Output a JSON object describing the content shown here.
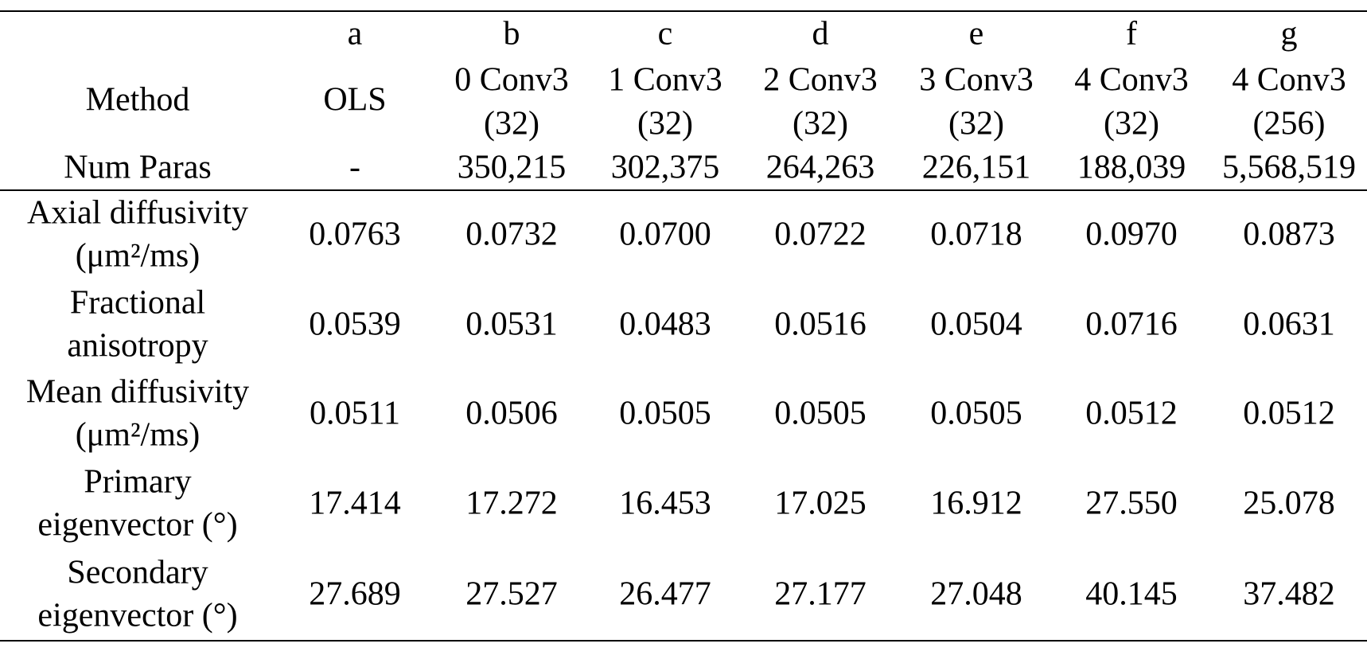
{
  "table": {
    "header": {
      "method_label": "Method",
      "params_label": "Num Paras",
      "columns": [
        {
          "letter": "a",
          "name": [
            "OLS"
          ],
          "params": "-"
        },
        {
          "letter": "b",
          "name": [
            "0 Conv3",
            "(32)"
          ],
          "params": "350,215"
        },
        {
          "letter": "c",
          "name": [
            "1 Conv3",
            "(32)"
          ],
          "params": "302,375"
        },
        {
          "letter": "d",
          "name": [
            "2 Conv3",
            "(32)"
          ],
          "params": "264,263"
        },
        {
          "letter": "e",
          "name": [
            "3 Conv3",
            "(32)"
          ],
          "params": "226,151"
        },
        {
          "letter": "f",
          "name": [
            "4 Conv3",
            "(32)"
          ],
          "params": "188,039"
        },
        {
          "letter": "g",
          "name": [
            "4 Conv3",
            "(256)"
          ],
          "params": "5,568,519"
        }
      ]
    },
    "rows": [
      {
        "label": [
          "Axial diffusivity",
          "(μm²/ms)"
        ],
        "values": [
          "0.0763",
          "0.0732",
          "0.0700",
          "0.0722",
          "0.0718",
          "0.0970",
          "0.0873"
        ],
        "colors": [
          "#000000",
          "#4472c4",
          "#ff0000",
          "#4472c4",
          "#4472c4",
          "#000000",
          "#000000"
        ]
      },
      {
        "label": [
          "Fractional",
          "anisotropy"
        ],
        "values": [
          "0.0539",
          "0.0531",
          "0.0483",
          "0.0516",
          "0.0504",
          "0.0716",
          "0.0631"
        ],
        "colors": [
          "#000000",
          "#4472c4",
          "#ff0000",
          "#4472c4",
          "#4472c4",
          "#000000",
          "#000000"
        ]
      },
      {
        "label": [
          "Mean diffusivity",
          "(μm²/ms)"
        ],
        "values": [
          "0.0511",
          "0.0506",
          "0.0505",
          "0.0505",
          "0.0505",
          "0.0512",
          "0.0512"
        ],
        "colors": [
          "#000000",
          "#4472c4",
          "#ff0000",
          "#ff0000",
          "#ff0000",
          "#000000",
          "#000000"
        ]
      },
      {
        "label": [
          "Primary",
          "eigenvector (°)"
        ],
        "values": [
          "17.414",
          "17.272",
          "16.453",
          "17.025",
          "16.912",
          "27.550",
          "25.078"
        ],
        "colors": [
          "#000000",
          "#4472c4",
          "#ff0000",
          "#4472c4",
          "#4472c4",
          "#000000",
          "#000000"
        ]
      },
      {
        "label": [
          "Secondary",
          "eigenvector (°)"
        ],
        "values": [
          "27.689",
          "27.527",
          "26.477",
          "27.177",
          "27.048",
          "40.145",
          "37.482"
        ],
        "colors": [
          "#000000",
          "#4472c4",
          "#ff0000",
          "#4472c4",
          "#4472c4",
          "#000000",
          "#000000"
        ]
      }
    ]
  }
}
